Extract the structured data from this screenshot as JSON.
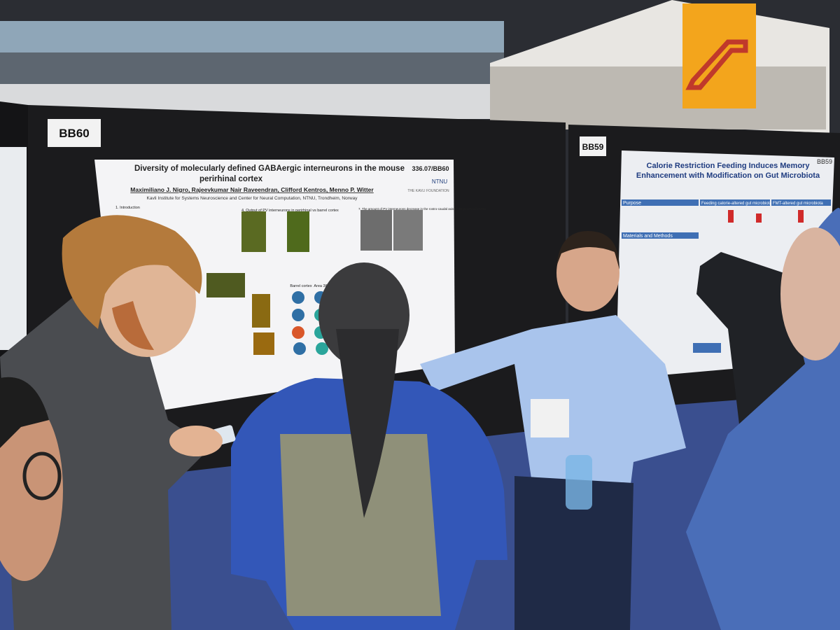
{
  "signs": {
    "left": "BB60",
    "right": "BB59"
  },
  "poster_left": {
    "title_lines": [
      "Diversity of molecularly defined GABAergic interneurons in the mouse",
      "perirhinal cortex"
    ],
    "id": "336.07/BB60",
    "authors": "Maximiliano J. Nigro, Rajeevkumar Nair Raveendran, Clifford Kentros, Menno P. Witter",
    "affiliation": "Kavli Institute for Systems Neuroscience and Center for Neural Computation, NTNU, Trondheim, Norway",
    "logos": [
      "NTNU",
      "THE KAVLI FOUNDATION"
    ],
    "sections": [
      "1. Introduction",
      "4. Output of PV interneurons in perirhinal vs barrel cortex",
      "7. The amount of PV interneurons decrease in the rostro-caudal axis of the perirhinal cortex"
    ],
    "panel_labels": [
      "Barrel cortex",
      "Area 36"
    ]
  },
  "poster_right": {
    "title_lines": [
      "Calorie Restriction Feeding Induces Memory",
      "Enhancement with Modification on Gut Microbiota"
    ],
    "id": "BB59",
    "sections": [
      "Purpose",
      "Feeding calorie-altered gut microbiota",
      "FMT-altered gut microbiota",
      "Materials and Methods"
    ]
  }
}
